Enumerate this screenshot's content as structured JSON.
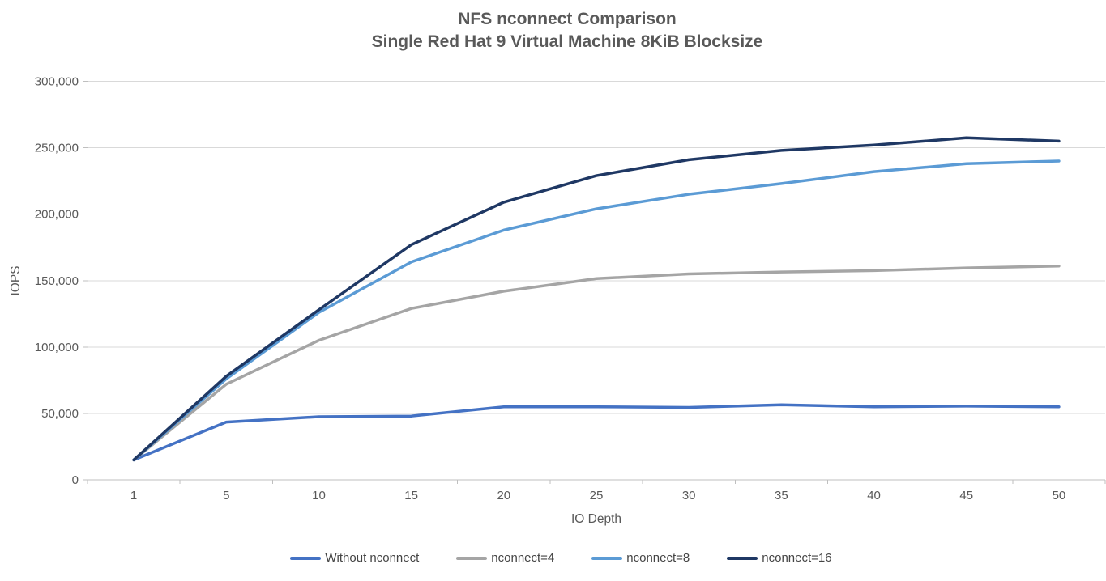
{
  "chart_data": {
    "type": "line",
    "title": "NFS nconnect Comparison",
    "subtitle": "Single Red Hat 9 Virtual Machine 8KiB Blocksize",
    "xlabel": "IO Depth",
    "ylabel": "IOPS",
    "x": [
      1,
      5,
      10,
      15,
      20,
      25,
      30,
      35,
      40,
      45,
      50
    ],
    "x_tick_labels": [
      "1",
      "5",
      "10",
      "15",
      "20",
      "25",
      "30",
      "35",
      "40",
      "45",
      "50"
    ],
    "ylim": [
      0,
      300000
    ],
    "y_ticks": [
      0,
      50000,
      100000,
      150000,
      200000,
      250000,
      300000
    ],
    "y_tick_labels": [
      "0",
      "50,000",
      "100,000",
      "150,000",
      "200,000",
      "250,000",
      "300,000"
    ],
    "grid": "horizontal",
    "legend_position": "bottom",
    "series": [
      {
        "name": "Without nconnect",
        "color": "#4472C4",
        "values": [
          15000,
          43500,
          47500,
          48000,
          55000,
          55000,
          54500,
          56500,
          55000,
          55500,
          55000
        ]
      },
      {
        "name": "nconnect=4",
        "color": "#A5A5A5",
        "values": [
          15000,
          72000,
          105000,
          129000,
          142000,
          151500,
          155000,
          156500,
          157500,
          159500,
          161000
        ]
      },
      {
        "name": "nconnect=8",
        "color": "#5B9BD5",
        "values": [
          15000,
          76000,
          126000,
          164000,
          188000,
          204000,
          215000,
          223000,
          232000,
          238000,
          240000
        ]
      },
      {
        "name": "nconnect=16",
        "color": "#1F3864",
        "values": [
          15000,
          78000,
          128000,
          177000,
          209000,
          229000,
          241000,
          248000,
          252000,
          257500,
          255000
        ]
      }
    ],
    "style": {
      "grid_color": "#D9D9D9",
      "axis_color": "#BFBFBF",
      "text_color": "#595959",
      "line_width": 3.5
    }
  }
}
